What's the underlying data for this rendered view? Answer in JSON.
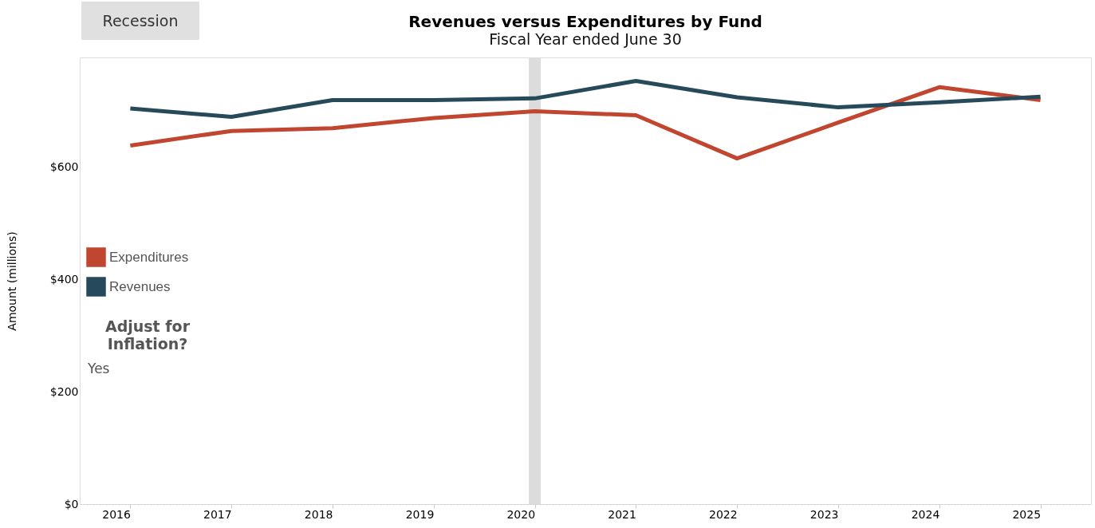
{
  "chart_data": {
    "type": "line",
    "title": "Revenues versus Expenditures by Fund",
    "subtitle": "Fiscal Year ended June 30",
    "ylabel": "Amount (millions)",
    "categories": [
      "2016",
      "2017",
      "2018",
      "2019",
      "2020",
      "2021",
      "2022",
      "2023",
      "2024",
      "2025"
    ],
    "series": [
      {
        "name": "Expenditures",
        "color": "#c0462f",
        "values": [
          639,
          665,
          670,
          688,
          700,
          693,
          616,
          680,
          743,
          720
        ]
      },
      {
        "name": "Revenues",
        "color": "#264a5a",
        "values": [
          705,
          690,
          720,
          720,
          723,
          754,
          725,
          707,
          716,
          726
        ]
      }
    ],
    "ylim": [
      0,
      796
    ],
    "yticks": [
      {
        "value": 0,
        "label": "$0"
      },
      {
        "value": 200,
        "label": "$200"
      },
      {
        "value": 400,
        "label": "$400"
      },
      {
        "value": 600,
        "label": "$600"
      }
    ],
    "bands": [
      {
        "axis": "x",
        "from": "2020",
        "to": "2020",
        "color": "#dcdcdc"
      }
    ],
    "legend": "left",
    "grid": false,
    "annotations": [
      "Recession",
      "Adjust for Inflation?",
      "Yes"
    ]
  }
}
